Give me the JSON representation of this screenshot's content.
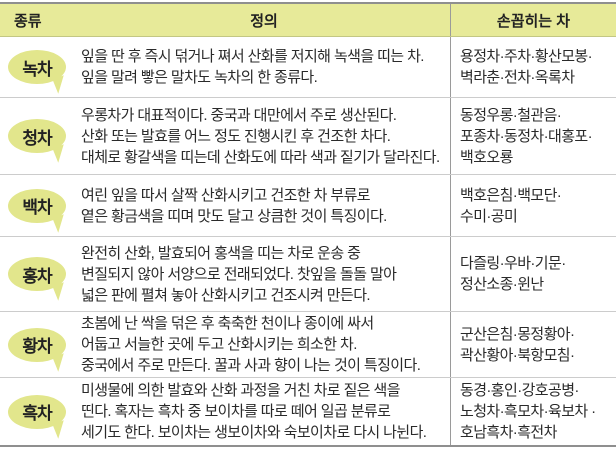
{
  "colors": {
    "header_bg": "#e7ea99",
    "bubble": "#e2e68c",
    "border_dark": "#8f8f8f",
    "divider": "#cccccc",
    "col_divider": "#9a9a9a",
    "text": "#222222"
  },
  "table": {
    "headers": [
      {
        "label": "종류"
      },
      {
        "label": "정의"
      },
      {
        "label": "손꼽히는 차"
      }
    ],
    "rows": [
      {
        "type": "녹차",
        "definition": "잎을 딴 후 즉시 덖거나 쪄서 산화를 저지해 녹색을 띠는 차.\n잎을 말려 빻은 말차도 녹차의 한 종류다.",
        "teas": "용정차·주차·황산모봉·\n벽라춘·전차·옥록차"
      },
      {
        "type": "청차",
        "definition": "우롱차가 대표적이다. 중국과 대만에서 주로 생산된다.\n산화 또는 발효를 어느 정도 진행시킨 후 건조한 차다.\n대체로 황갈색을 띠는데 산화도에 따라 색과 짙기가 달라진다.",
        "teas": "동정우롱·철관음·\n포종차·동정차·대홍포·\n백호오룡"
      },
      {
        "type": "백차",
        "definition": "여린 잎을 따서 살짝 산화시키고 건조한 차 부류로\n옅은 황금색을 띠며 맛도 달고 상큼한 것이 특징이다.",
        "teas": "백호은침·백모단·\n수미·공미"
      },
      {
        "type": "홍차",
        "definition": "완전히 산화, 발효되어 홍색을 띠는 차로 운송 중\n변질되지 않아 서양으로 전래되었다. 찻잎을 돌돌 말아\n넓은 판에 펼쳐 놓아 산화시키고 건조시켜 만든다.",
        "teas": "다즐링·우바·기문·\n정산소종·윈난"
      },
      {
        "type": "황차",
        "definition": "초봄에 난 싹을 덖은 후 축축한 천이나 종이에 싸서\n어둡고 서늘한 곳에 두고 산화시키는 희소한 차.\n중국에서 주로 만든다. 꿀과 사과 향이 나는 것이 특징이다.",
        "teas": "군산은침·몽정황아·\n곽산황아·북항모침·"
      },
      {
        "type": "흑차",
        "definition": "미생물에 의한 발효와 산화 과정을 거친 차로 짙은 색을\n띤다. 혹자는 흑차 중 보이차를 따로 떼어 일곱 분류로\n세기도 한다. 보이차는 생보이차와 숙보이차로 다시 나뉜다.",
        "teas": "동경·홍인·강호공병·\n노청차·흑모차·육보차 ·\n호남흑차·흑전차"
      }
    ]
  }
}
